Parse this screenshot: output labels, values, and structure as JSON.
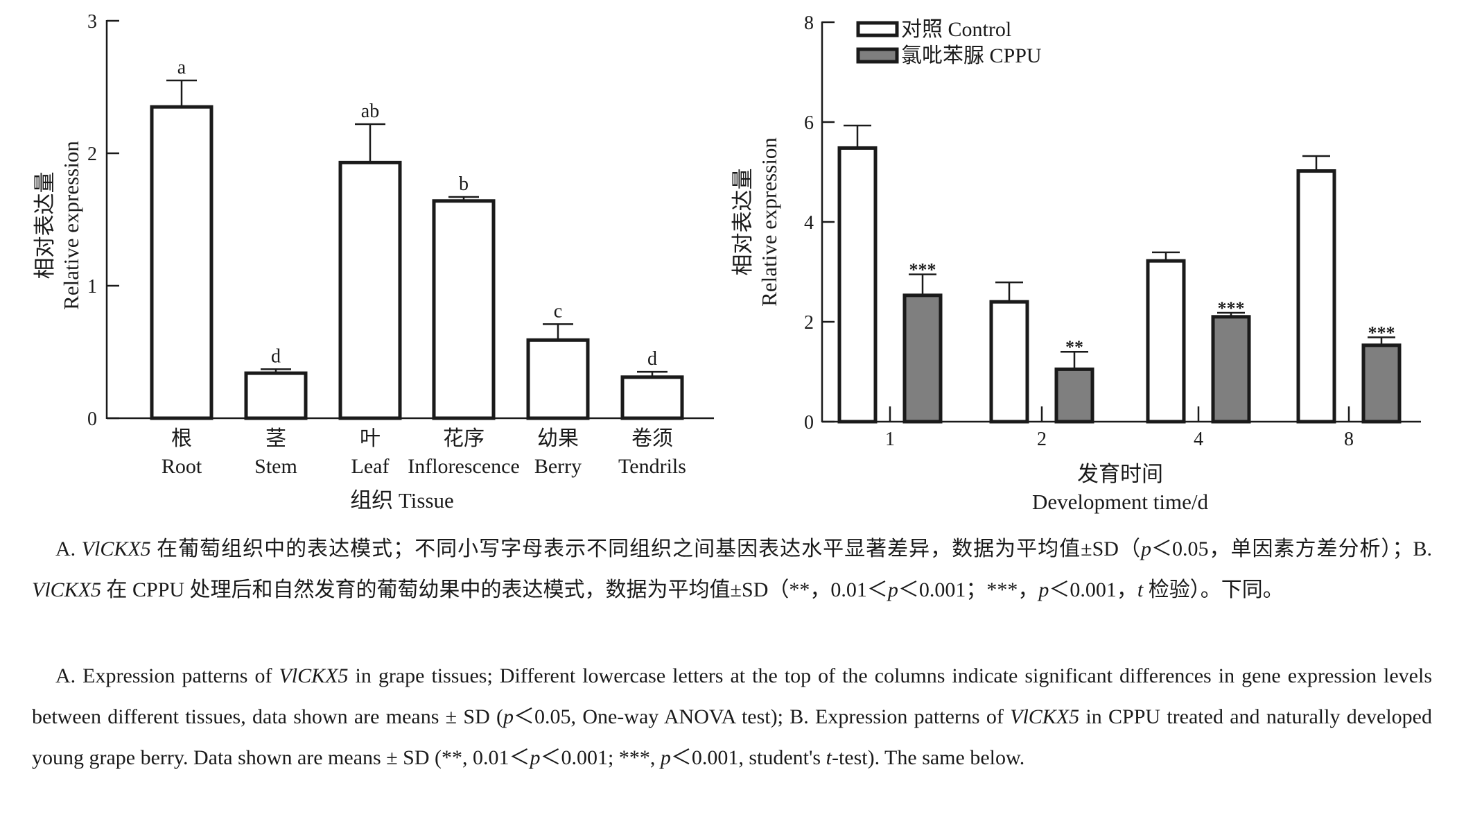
{
  "chart_data": [
    {
      "type": "bar",
      "panel": "A",
      "categories_cn": [
        "根",
        "茎",
        "叶",
        "花序",
        "幼果",
        "卷须"
      ],
      "categories": [
        "Root",
        "Stem",
        "Leaf",
        "Inflorescence",
        "Berry",
        "Tendrils"
      ],
      "values": [
        2.35,
        0.34,
        1.93,
        1.64,
        0.59,
        0.31
      ],
      "errors": [
        0.2,
        0.03,
        0.29,
        0.03,
        0.12,
        0.04
      ],
      "letters": [
        "a",
        "d",
        "ab",
        "b",
        "c",
        "d"
      ],
      "ylabel_cn": "相对表达量",
      "ylabel": "Relative expression",
      "xlabel": "组织 Tissue",
      "ylim": [
        0,
        3
      ],
      "yticks": [
        "0",
        "1",
        "2",
        "3"
      ],
      "grid": false
    },
    {
      "type": "bar",
      "panel": "B",
      "categories": [
        "1",
        "2",
        "4",
        "8"
      ],
      "series": [
        {
          "name": "对照 Control",
          "color": "#ffffff",
          "values": [
            5.48,
            2.4,
            3.22,
            5.02
          ],
          "errors": [
            0.45,
            0.39,
            0.17,
            0.3
          ],
          "sig": [
            "",
            "",
            "",
            ""
          ]
        },
        {
          "name": "氯吡苯脲 CPPU",
          "color": "#7f7f7f",
          "values": [
            2.53,
            1.05,
            2.1,
            1.53
          ],
          "errors": [
            0.42,
            0.35,
            0.08,
            0.16
          ],
          "sig": [
            "***",
            "**",
            "***",
            "***"
          ]
        }
      ],
      "ylabel_cn": "相对表达量",
      "ylabel": "Relative expression",
      "xlabel_cn": "发育时间",
      "xlabel": "Development time/d",
      "ylim": [
        0,
        8
      ],
      "yticks": [
        "0",
        "2",
        "4",
        "6",
        "8"
      ],
      "legend_position": "top-left",
      "grid": false
    }
  ],
  "caption": {
    "cn": {
      "a_prefix": "A. ",
      "a_gene": "VlCKX5",
      "a_text1": " 在葡萄组织中的表达模式；不同小写字母表示不同组织之间基因表达水平显著差异，数据为平均值±SD（",
      "a_p": "p",
      "a_text2": "＜0.05，单因素方差分析）；B. ",
      "b_gene": "VlCKX5",
      "b_text1": " 在 CPPU 处理后和自然发育的葡萄幼果中的表达模式，数据为平均值±SD（**，0.01＜",
      "b_p1": "p",
      "b_text2": "＜0.001；***，",
      "b_p2": "p",
      "b_text3": "＜0.001，",
      "b_t": "t",
      "b_text4": " 检验）。下同。"
    },
    "en": {
      "a_text1": "A. Expression patterns of ",
      "a_gene": "VlCKX5",
      "a_text2": " in grape tissues; Different lowercase letters at the top of the columns indicate significant differences in gene expression levels between different tissues, data shown are means ± SD (",
      "a_p": "p",
      "a_text3": "＜0.05, One-way ANOVA test); B. Expression patterns of ",
      "b_gene": "VlCKX5",
      "b_text1": " in CPPU treated and naturally developed young grape berry. Data shown are means ± SD (**, 0.01＜",
      "b_p1": "p",
      "b_text2": "＜0.001; ***, ",
      "b_p2": "p",
      "b_text3": "＜0.001, student's ",
      "b_t": "t",
      "b_text4": "-test). The same below."
    }
  }
}
